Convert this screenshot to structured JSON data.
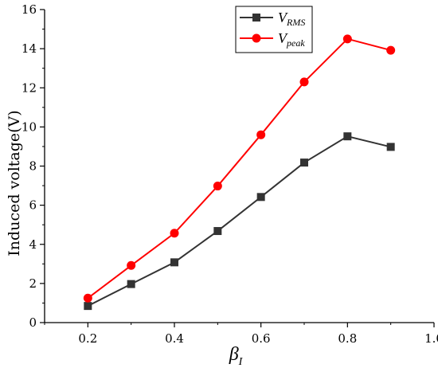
{
  "chart_data": {
    "type": "line",
    "xlabel_symbol": "β",
    "xlabel_subscript": "I",
    "ylabel": "Induced voltage(V)",
    "xlim": [
      0.1,
      1.0
    ],
    "ylim": [
      0,
      16
    ],
    "x_ticks": [
      0.2,
      0.4,
      0.6,
      0.8,
      1.0
    ],
    "x_tick_labels": [
      "0.2",
      "0.4",
      "0.6",
      "0.8",
      "1.0"
    ],
    "y_ticks": [
      0,
      2,
      4,
      6,
      8,
      10,
      12,
      14,
      16
    ],
    "y_tick_labels": [
      "0",
      "2",
      "4",
      "6",
      "8",
      "10",
      "12",
      "14",
      "16"
    ],
    "grid": false,
    "legend_position": "top-right",
    "x": [
      0.2,
      0.3,
      0.4,
      0.5,
      0.6,
      0.7,
      0.8,
      0.9
    ],
    "series": [
      {
        "name_main": "V",
        "name_sub": "RMS",
        "color": "#333333",
        "marker": "square",
        "values": [
          0.85,
          1.97,
          3.08,
          4.68,
          6.42,
          8.18,
          9.52,
          8.98
        ]
      },
      {
        "name_main": "V",
        "name_sub": "peak",
        "color": "#ff0000",
        "marker": "circle",
        "values": [
          1.25,
          2.92,
          4.57,
          6.98,
          9.6,
          12.3,
          14.5,
          13.92
        ]
      }
    ]
  }
}
